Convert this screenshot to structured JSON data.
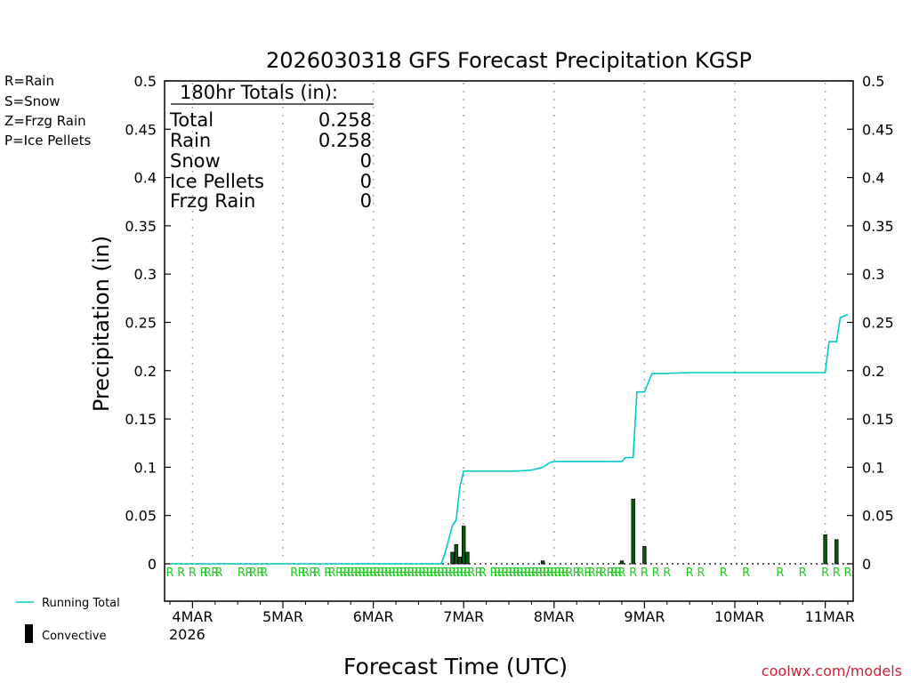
{
  "chart_data": {
    "type": "line",
    "title": "2026030318 GFS Forecast Precipitation KGSP",
    "xlabel": "Forecast Time (UTC)",
    "ylabel": "Precipitation (in)",
    "ylim": [
      0,
      0.5
    ],
    "yticks": [
      "0",
      "0.05",
      "0.1",
      "0.15",
      "0.2",
      "0.25",
      "0.3",
      "0.35",
      "0.4",
      "0.45",
      "0.5"
    ],
    "x_unit": "forecast hour",
    "xlim": [
      0,
      180
    ],
    "xticks": [
      {
        "hour": 6,
        "label": "4MAR"
      },
      {
        "hour": 30,
        "label": "5MAR"
      },
      {
        "hour": 54,
        "label": "6MAR"
      },
      {
        "hour": 78,
        "label": "7MAR"
      },
      {
        "hour": 102,
        "label": "8MAR"
      },
      {
        "hour": 126,
        "label": "9MAR"
      },
      {
        "hour": 150,
        "label": "10MAR"
      },
      {
        "hour": 174,
        "label": "11MAR"
      }
    ],
    "year_label": "2026",
    "legend_types": [
      {
        "label": "R=Rain",
        "color": "#22cc22"
      },
      {
        "label": "S=Snow",
        "color": "#3355dd"
      },
      {
        "label": "Z=Frzg Rain",
        "color": "#ee8833"
      },
      {
        "label": "P=Ice Pellets",
        "color": "#ee2299"
      }
    ],
    "legend_series": [
      {
        "label": "Running Total",
        "color": "#00c8c8"
      },
      {
        "label": "Convective",
        "color": "#000000"
      }
    ],
    "totals": {
      "heading": "180hr Totals (in):",
      "rows": [
        {
          "label": "Total",
          "value": "0.258"
        },
        {
          "label": "Rain",
          "value": "0.258"
        },
        {
          "label": "Snow",
          "value": "0"
        },
        {
          "label": "Ice Pellets",
          "value": "0"
        },
        {
          "label": "Frzg Rain",
          "value": "0"
        }
      ]
    },
    "running_total": {
      "hours": [
        0,
        72,
        73,
        74,
        75,
        76,
        77,
        78,
        90,
        91,
        92,
        96,
        99,
        101,
        102,
        104,
        110,
        118,
        120,
        121,
        122,
        123,
        124,
        126,
        128,
        130,
        138,
        162,
        170,
        174,
        175,
        177,
        178,
        180
      ],
      "values": [
        0,
        0,
        0.01,
        0.025,
        0.04,
        0.045,
        0.08,
        0.096,
        0.096,
        0.096,
        0.096,
        0.097,
        0.1,
        0.105,
        0.106,
        0.106,
        0.106,
        0.106,
        0.106,
        0.11,
        0.11,
        0.11,
        0.178,
        0.178,
        0.197,
        0.197,
        0.198,
        0.198,
        0.198,
        0.198,
        0.23,
        0.23,
        0.255,
        0.258
      ]
    },
    "bars": {
      "hours": [
        75,
        76,
        77,
        78,
        79,
        99,
        120,
        123,
        126,
        174,
        177
      ],
      "values": [
        0.012,
        0.02,
        0.007,
        0.039,
        0.012,
        0.003,
        0.003,
        0.067,
        0.018,
        0.03,
        0.025
      ]
    },
    "precip_type_hours": [
      0,
      3,
      6,
      9,
      10,
      12,
      13,
      19,
      21,
      22,
      24,
      25,
      33,
      35,
      36,
      38,
      39,
      42,
      43,
      45,
      46,
      47,
      48,
      49,
      50,
      51,
      52,
      53,
      54,
      55,
      56,
      57,
      58,
      59,
      60,
      61,
      62,
      63,
      64,
      65,
      66,
      67,
      68,
      69,
      70,
      71,
      72,
      73,
      74,
      75,
      76,
      77,
      78,
      79,
      80,
      82,
      83,
      86,
      87,
      88,
      89,
      90,
      91,
      92,
      93,
      94,
      95,
      96,
      97,
      98,
      99,
      100,
      101,
      102,
      103,
      104,
      105,
      106,
      108,
      109,
      111,
      112,
      114,
      115,
      117,
      118,
      119,
      120,
      123,
      126,
      129,
      132,
      138,
      141,
      147,
      153,
      162,
      168,
      174,
      177,
      180
    ],
    "precip_type_code": "R",
    "watermark": "coolwx.com/models"
  }
}
